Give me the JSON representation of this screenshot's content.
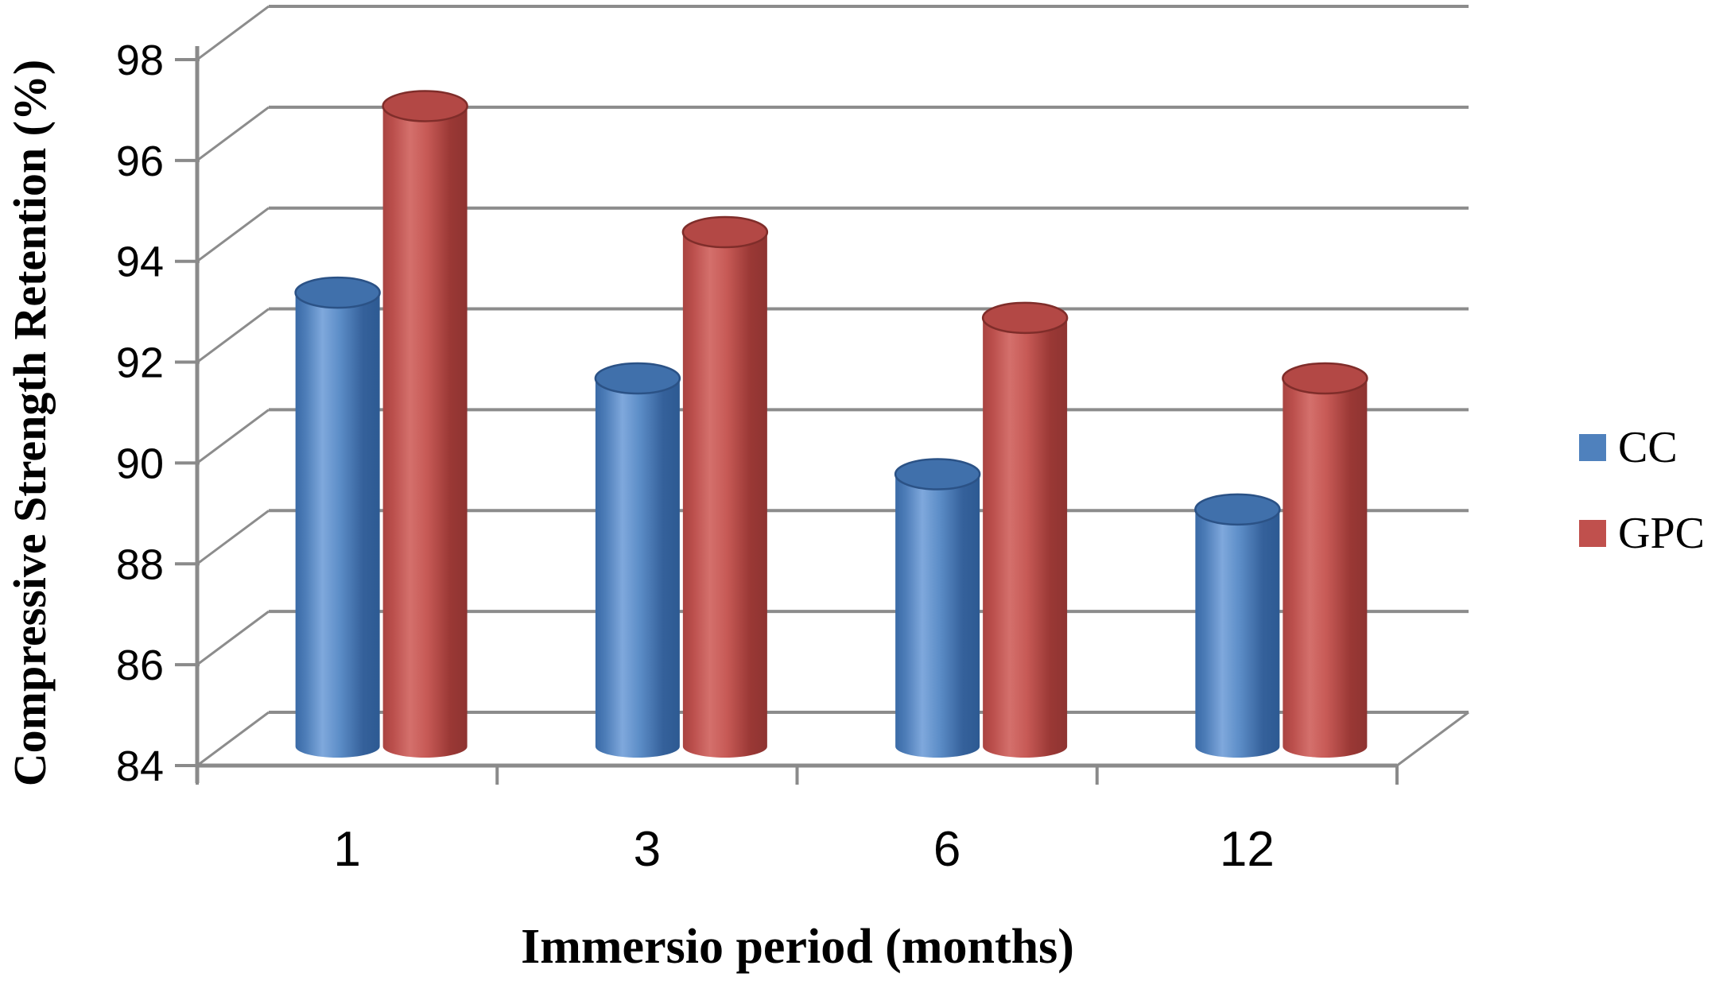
{
  "chart_data": {
    "type": "bar",
    "subtype": "3d-cylinder",
    "title": "",
    "xlabel": "Immersio period (months)",
    "ylabel": "Compressive Strength Retention (%)",
    "categories": [
      "1",
      "3",
      "6",
      "12"
    ],
    "series": [
      {
        "name": "CC",
        "color": "#4f81bd",
        "values": [
          93.0,
          91.3,
          89.4,
          88.7
        ]
      },
      {
        "name": "GPC",
        "color": "#c0504d",
        "values": [
          96.7,
          94.2,
          92.5,
          91.3
        ]
      }
    ],
    "ylim": [
      84,
      98
    ],
    "ytick_step": 2,
    "ytick_labels": [
      "98",
      "96",
      "94",
      "92",
      "90",
      "88",
      "86",
      "84"
    ],
    "grid": true,
    "legend_position": "right"
  },
  "colors": {
    "background": "#ffffff",
    "gridline": "#8c8c8c",
    "axis": "#8a8a8a",
    "text": "#000000",
    "cc_body_light": "#7fa8dc",
    "cc_body_dark": "#2d5a92",
    "cc_top": "#4070ab",
    "cc_top_rim": "#2b5286",
    "gpc_body_light": "#d4706c",
    "gpc_body_dark": "#8e3431",
    "gpc_top": "#b34845",
    "gpc_top_rim": "#7f2d2a"
  }
}
